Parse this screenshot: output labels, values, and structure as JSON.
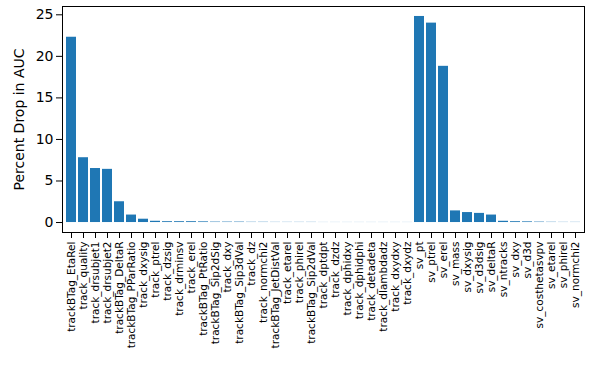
{
  "chart_data": {
    "type": "bar",
    "y_label": "Percent Drop in AUC",
    "categories": [
      "trackBTag_EtaRel",
      "track_quality",
      "track_drsubjet1",
      "track_drsubjet2",
      "trackBTag_DeltaR",
      "trackBTag_PParRatio",
      "track_dxysig",
      "track_ptrel",
      "track_dzsig",
      "track_drminsv",
      "track_erel",
      "trackBTag_PtRatio",
      "trackBTag_Sip2dSig",
      "track_dxy",
      "trackBTag_Sip3dVal",
      "track_dz",
      "track_normchi2",
      "trackBTag_JetDistVal",
      "track_etarel",
      "track_phirel",
      "trackBTag_Sip2dVal",
      "track_dptdpt",
      "track_dzdz",
      "track_dphidxy",
      "track_dphidphi",
      "track_detadeta",
      "track_dlambdadz",
      "track_dxydxy",
      "track_dxydz",
      "sv_pt",
      "sv_ptrel",
      "sv_erel",
      "sv_mass",
      "sv_dxysig",
      "sv_d3dsig",
      "sv_deltaR",
      "sv_ntracks",
      "sv_dxy",
      "sv_d3d",
      "sv_costhetasvpv",
      "sv_etarel",
      "sv_phirel",
      "sv_normchi2"
    ],
    "values": [
      22.3,
      7.8,
      6.5,
      6.4,
      2.5,
      0.9,
      0.4,
      0.15,
      0.1,
      0.1,
      0.1,
      0.08,
      0.05,
      0.05,
      0.05,
      0.03,
      0.03,
      0.02,
      0.02,
      0.02,
      0.02,
      0.01,
      0.01,
      0.01,
      0.01,
      0.01,
      0.01,
      0.01,
      0.01,
      24.8,
      24.0,
      18.8,
      1.4,
      1.2,
      1.1,
      0.9,
      0.15,
      0.1,
      0.08,
      0.05,
      0.03,
      0.02,
      0.02
    ],
    "color": "#1f77b4",
    "ylim": [
      -1.2,
      26
    ],
    "yticks": [
      0,
      5,
      10,
      15,
      20,
      25
    ],
    "grid": false
  }
}
